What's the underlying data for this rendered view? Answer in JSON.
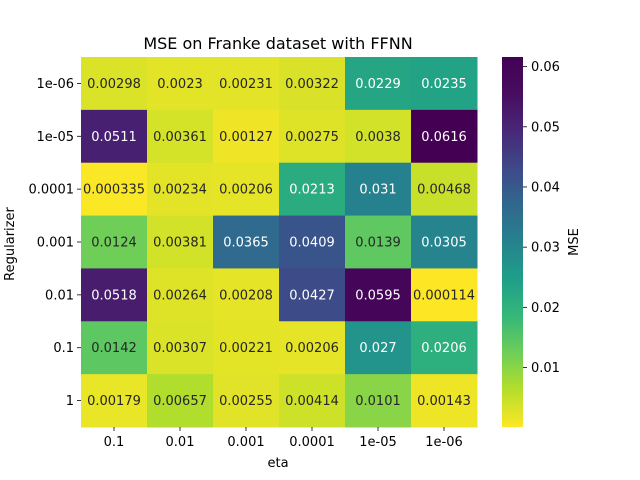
{
  "chart_data": {
    "type": "heatmap",
    "title": "MSE on Franke dataset with FFNN",
    "xlabel": "eta",
    "ylabel": "Regularizer",
    "x_categories": [
      "0.1",
      "0.01",
      "0.001",
      "0.0001",
      "1e-05",
      "1e-06"
    ],
    "y_categories": [
      "1e-06",
      "1e-05",
      "0.0001",
      "0.001",
      "0.01",
      "0.1",
      "1"
    ],
    "values": [
      [
        0.00298,
        0.0023,
        0.00231,
        0.00322,
        0.0229,
        0.0235
      ],
      [
        0.0511,
        0.00361,
        0.00127,
        0.00275,
        0.0038,
        0.0616
      ],
      [
        0.000335,
        0.00234,
        0.00206,
        0.0213,
        0.031,
        0.00468
      ],
      [
        0.0124,
        0.00381,
        0.0365,
        0.0409,
        0.0139,
        0.0305
      ],
      [
        0.0518,
        0.00264,
        0.00208,
        0.0427,
        0.0595,
        0.000114
      ],
      [
        0.0142,
        0.00307,
        0.00221,
        0.00206,
        0.027,
        0.0206
      ],
      [
        0.00179,
        0.00657,
        0.00255,
        0.00414,
        0.0101,
        0.00143
      ]
    ],
    "labels": [
      [
        "0.00298",
        "0.0023",
        "0.00231",
        "0.00322",
        "0.0229",
        "0.0235"
      ],
      [
        "0.0511",
        "0.00361",
        "0.00127",
        "0.00275",
        "0.0038",
        "0.0616"
      ],
      [
        "0.000335",
        "0.00234",
        "0.00206",
        "0.0213",
        "0.031",
        "0.00468"
      ],
      [
        "0.0124",
        "0.00381",
        "0.0365",
        "0.0409",
        "0.0139",
        "0.0305"
      ],
      [
        "0.0518",
        "0.00264",
        "0.00208",
        "0.0427",
        "0.0595",
        "0.000114"
      ],
      [
        "0.0142",
        "0.00307",
        "0.00221",
        "0.00206",
        "0.027",
        "0.0206"
      ],
      [
        "0.00179",
        "0.00657",
        "0.00255",
        "0.00414",
        "0.0101",
        "0.00143"
      ]
    ],
    "colormap": "viridis_r",
    "color_range": [
      0.000114,
      0.0616
    ],
    "colorbar": {
      "label": "MSE",
      "ticks": [
        0.01,
        0.02,
        0.03,
        0.04,
        0.05,
        0.06
      ],
      "tick_labels": [
        "0.01",
        "0.02",
        "0.03",
        "0.04",
        "0.05",
        "0.06"
      ]
    },
    "grid": false
  }
}
